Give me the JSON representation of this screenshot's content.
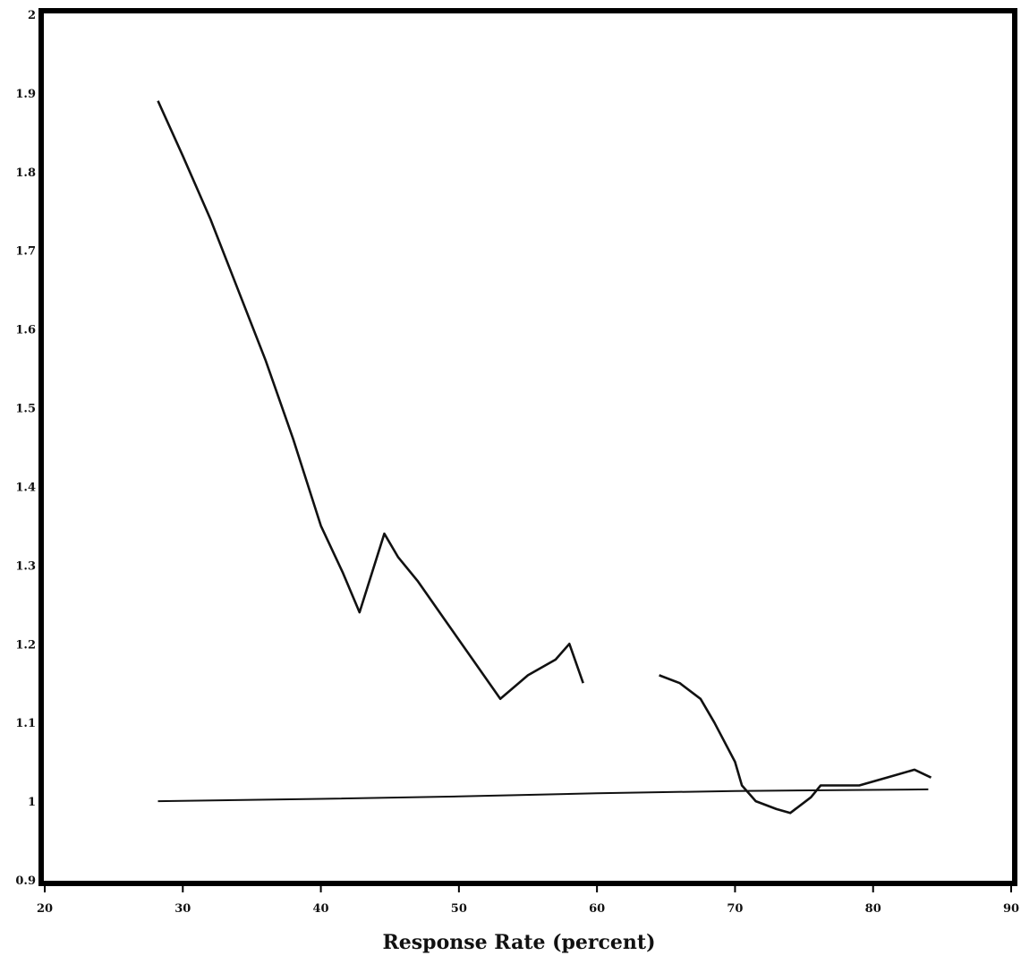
{
  "chart_data": {
    "type": "line",
    "title": "",
    "xlabel": "Response Rate (percent)",
    "ylabel": "",
    "xlim": [
      20,
      90
    ],
    "ylim": [
      0.9,
      2.0
    ],
    "x_ticks": [
      20,
      30,
      40,
      50,
      60,
      70,
      80,
      90
    ],
    "x_tick_labels": [
      "20",
      "30",
      "40",
      "50",
      "60",
      "70",
      "80",
      "90"
    ],
    "y_ticks": [
      0.9,
      1.0,
      1.1,
      1.2,
      1.3,
      1.4,
      1.5,
      1.6,
      1.7,
      1.8,
      1.9,
      2.0
    ],
    "y_tick_labels": [
      "0.9",
      "1",
      "1.1",
      "1.2",
      "1.3",
      "1.4",
      "1.5",
      "1.6",
      "1.7",
      "1.8",
      "1.9",
      "2"
    ],
    "grid": false,
    "legend": "none",
    "line_color": "#111111",
    "series": [
      {
        "segments": [
          [
            [
              28.2,
              1.89
            ],
            [
              30,
              1.82
            ],
            [
              32,
              1.74
            ],
            [
              34,
              1.65
            ],
            [
              36,
              1.56
            ],
            [
              38,
              1.46
            ],
            [
              40,
              1.35
            ],
            [
              41.6,
              1.29
            ],
            [
              42.8,
              1.24
            ],
            [
              44.6,
              1.34
            ],
            [
              45.6,
              1.31
            ],
            [
              47,
              1.28
            ],
            [
              49,
              1.23
            ],
            [
              51,
              1.18
            ],
            [
              53,
              1.13
            ],
            [
              55,
              1.16
            ],
            [
              57,
              1.18
            ],
            [
              58,
              1.2
            ],
            [
              59,
              1.15
            ]
          ],
          [
            [
              64.5,
              1.16
            ],
            [
              66,
              1.15
            ],
            [
              67.5,
              1.13
            ],
            [
              68.5,
              1.1
            ],
            [
              70,
              1.05
            ],
            [
              70.5,
              1.02
            ],
            [
              71.5,
              1.0
            ],
            [
              73,
              0.99
            ],
            [
              74,
              0.985
            ],
            [
              75.5,
              1.005
            ],
            [
              76.2,
              1.02
            ],
            [
              79,
              1.02
            ],
            [
              80,
              1.025
            ],
            [
              81,
              1.03
            ],
            [
              83,
              1.04
            ],
            [
              84.2,
              1.03
            ]
          ]
        ]
      },
      {
        "segments": [
          [
            [
              28.2,
              1.0
            ],
            [
              40,
              1.003
            ],
            [
              50,
              1.006
            ],
            [
              60,
              1.01
            ],
            [
              70,
              1.013
            ],
            [
              84,
              1.015
            ]
          ]
        ]
      }
    ]
  }
}
